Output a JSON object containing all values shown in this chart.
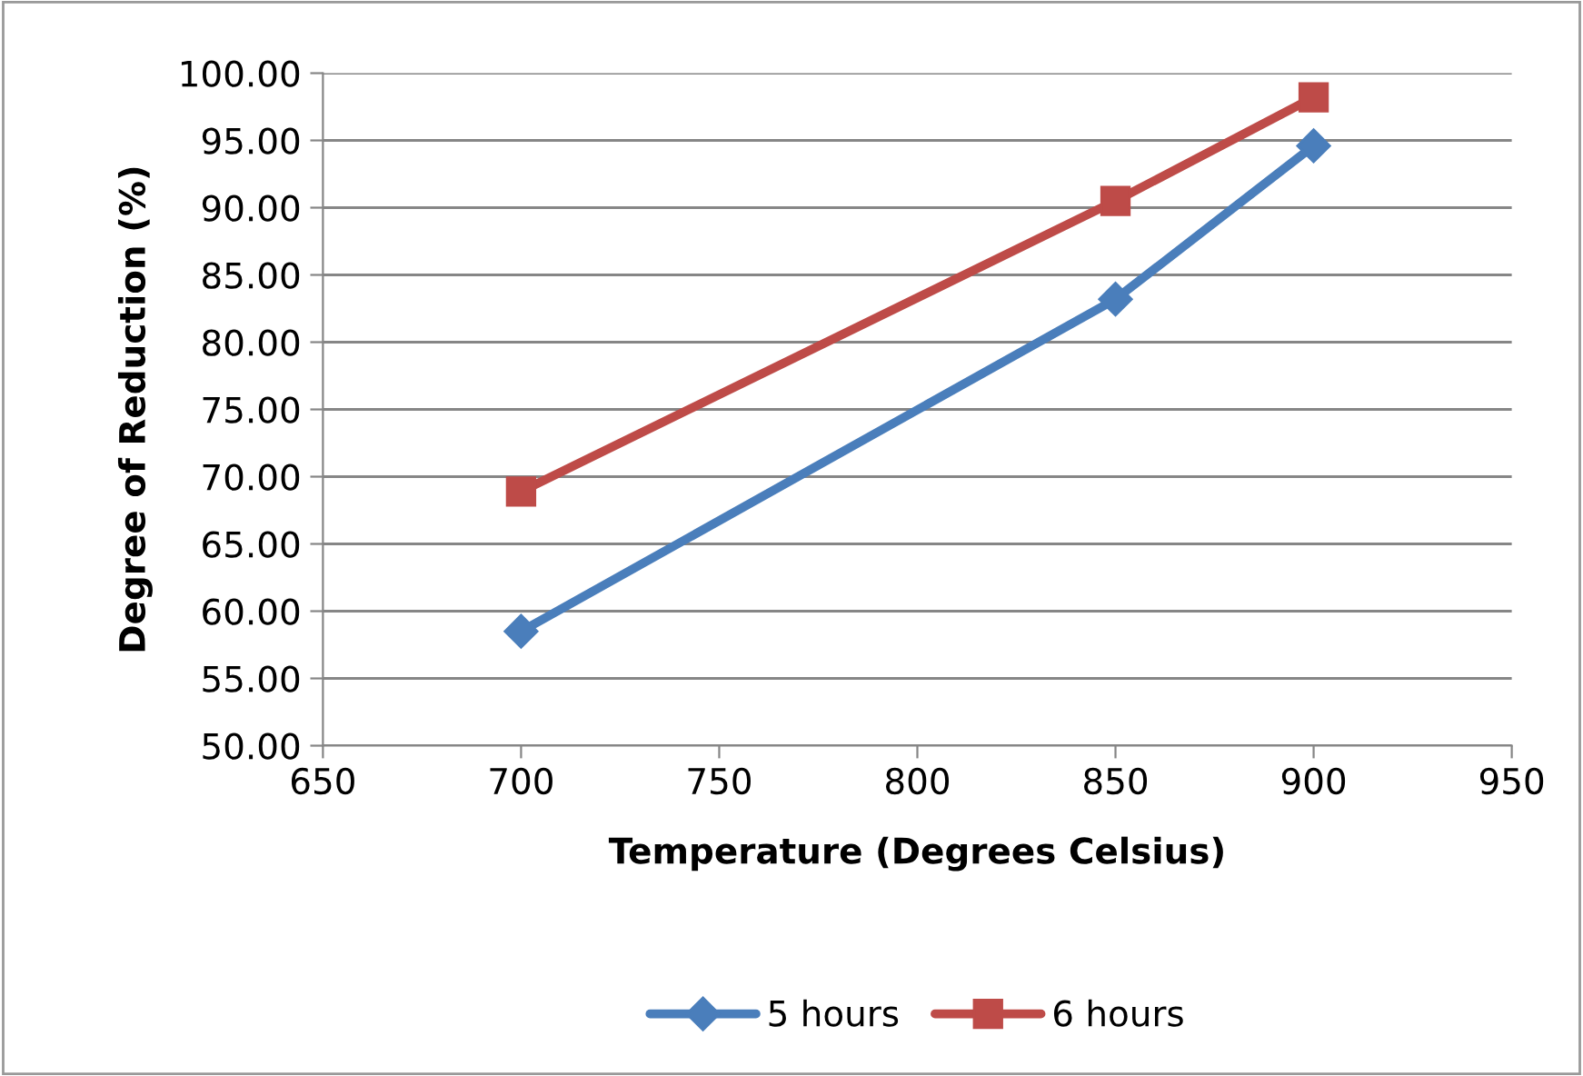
{
  "chart_data": {
    "type": "line",
    "xlabel": "Temperature (Degrees Celsius)",
    "ylabel": "Degree of Reduction (%)",
    "x": [
      700,
      850,
      900
    ],
    "series": [
      {
        "name": "5 hours",
        "color": "#4a7ebb",
        "marker": "diamond",
        "values": [
          58.5,
          83.2,
          94.6
        ]
      },
      {
        "name": "6 hours",
        "color": "#be4b48",
        "marker": "square",
        "values": [
          68.9,
          90.5,
          98.2
        ]
      }
    ],
    "xlim": [
      650,
      950
    ],
    "xticks": [
      650,
      700,
      750,
      800,
      850,
      900,
      950
    ],
    "ylim": [
      50,
      100
    ],
    "yticks": [
      {
        "value": 50,
        "label": "50.00"
      },
      {
        "value": 55,
        "label": "55.00"
      },
      {
        "value": 60,
        "label": "60.00"
      },
      {
        "value": 65,
        "label": "65.00"
      },
      {
        "value": 70,
        "label": "70.00"
      },
      {
        "value": 75,
        "label": "75.00"
      },
      {
        "value": 80,
        "label": "80.00"
      },
      {
        "value": 85,
        "label": "85.00"
      },
      {
        "value": 90,
        "label": "90.00"
      },
      {
        "value": 95,
        "label": "95.00"
      },
      {
        "value": 100,
        "label": "100.00"
      }
    ],
    "grid": "y",
    "legend": "bottom",
    "line_style": "solid"
  }
}
